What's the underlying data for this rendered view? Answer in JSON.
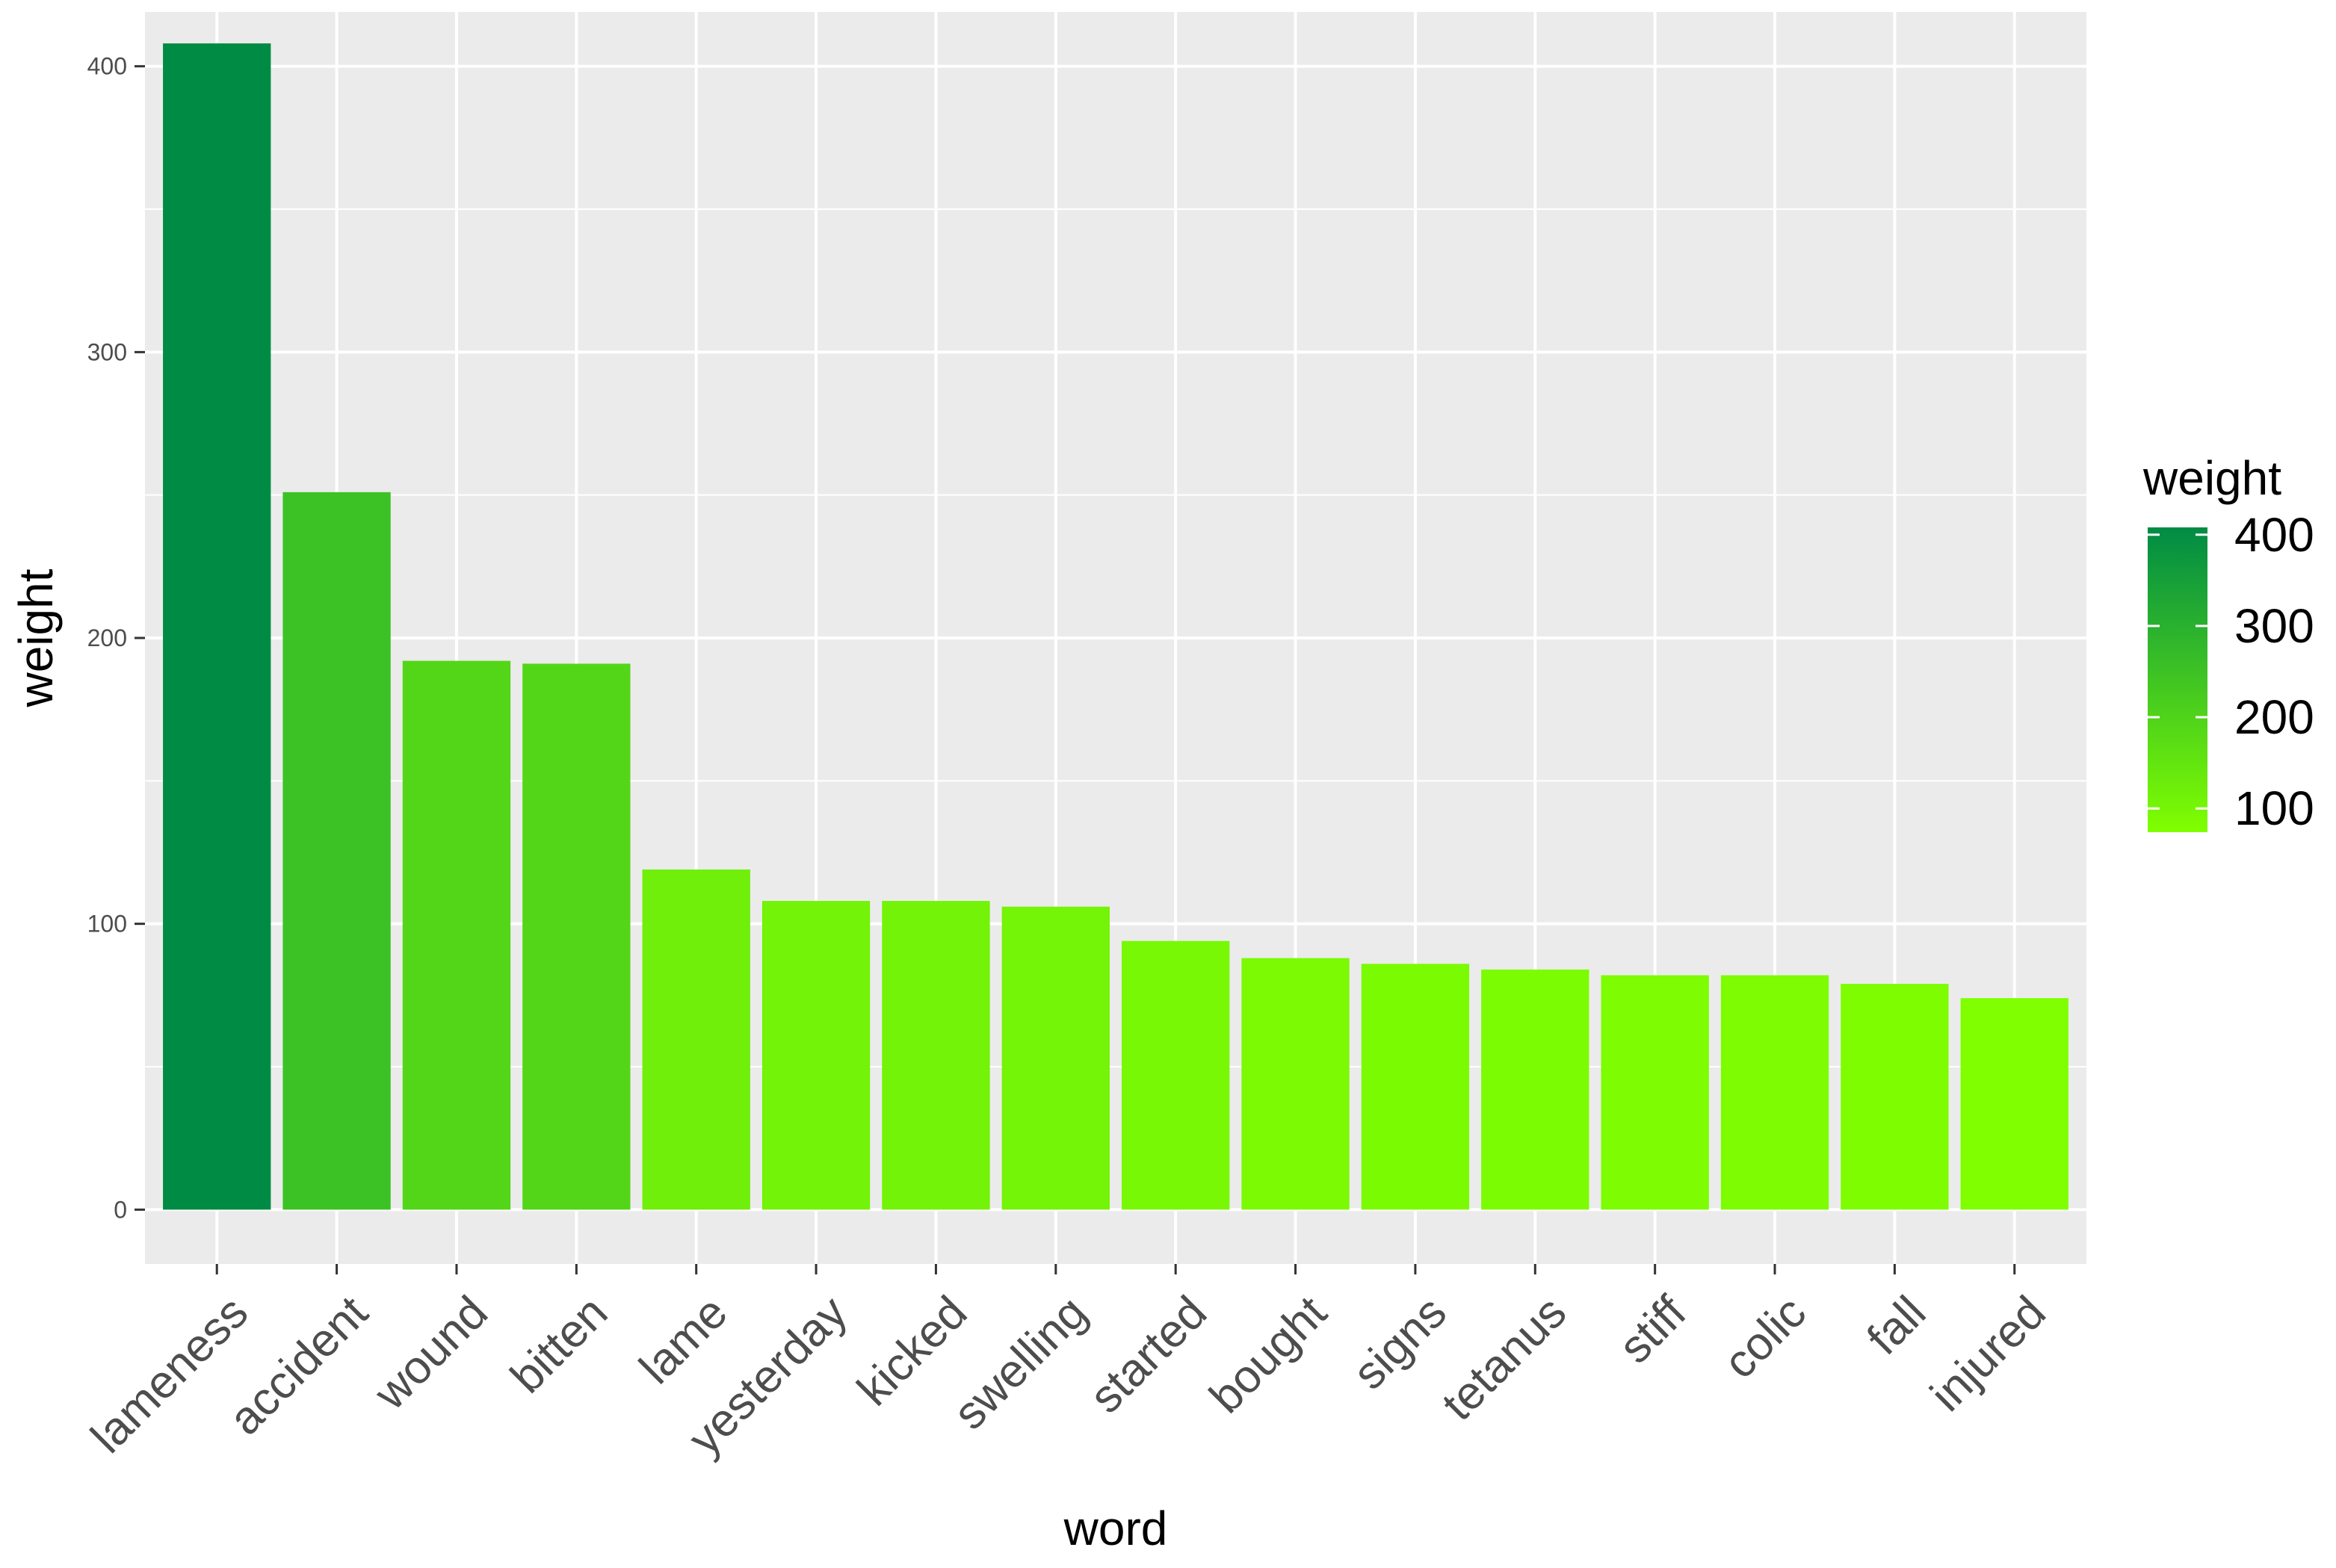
{
  "chart_data": {
    "type": "bar",
    "title": "",
    "xlabel": "word",
    "ylabel": "weight",
    "categories": [
      "lameness",
      "accident",
      "wound",
      "bitten",
      "lame",
      "yesterday",
      "kicked",
      "swelling",
      "started",
      "bought",
      "signs",
      "tetanus",
      "stiff",
      "colic",
      "fall",
      "injured"
    ],
    "values": [
      408,
      251,
      192,
      191,
      119,
      108,
      108,
      106,
      94,
      88,
      86,
      84,
      82,
      82,
      79,
      74
    ],
    "ylim": [
      -19,
      419
    ],
    "yticks": [
      0,
      100,
      200,
      300,
      400
    ],
    "ytick_labels": [
      "0",
      "100",
      "200",
      "300",
      "400"
    ],
    "grid": true,
    "legend": {
      "title": "weight",
      "position": "right",
      "ticks": [
        100,
        200,
        300,
        400
      ],
      "tick_labels": [
        "100",
        "200",
        "300",
        "400"
      ],
      "range": [
        74,
        408
      ],
      "color_low": "#80ff00",
      "color_high": "#008b45"
    },
    "colors": {
      "panel_background": "#ebebeb",
      "grid_major": "#ffffff",
      "axis_text": "#4d4d4d",
      "axis_title": "#000000"
    }
  }
}
